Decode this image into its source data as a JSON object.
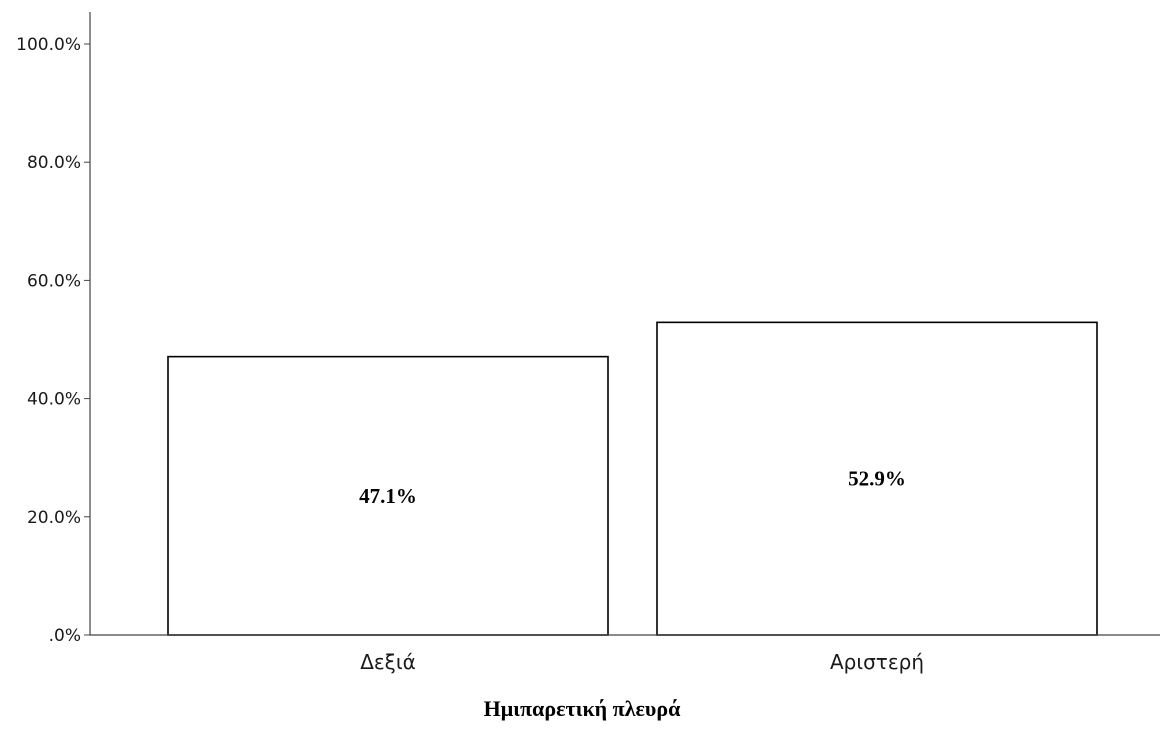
{
  "chart_data": {
    "type": "bar",
    "categories": [
      "Δεξιά",
      "Αριστερή"
    ],
    "values": [
      47.1,
      52.9
    ],
    "data_labels": [
      "47.1%",
      "52.9%"
    ],
    "title": "",
    "xlabel": "Ημιπαρετική πλευρά",
    "ylabel": "",
    "ylim": [
      0,
      100
    ],
    "yticks": [
      0,
      20,
      40,
      60,
      80,
      100
    ],
    "ytick_labels": [
      ".0%",
      "20.0%",
      "40.0%",
      "60.0%",
      "80.0%",
      "100.0%"
    ],
    "grid": false,
    "legend": "none",
    "colors": {
      "bar_fill": "#ffffff",
      "bar_stroke": "#000000",
      "axis": "#444444"
    }
  }
}
